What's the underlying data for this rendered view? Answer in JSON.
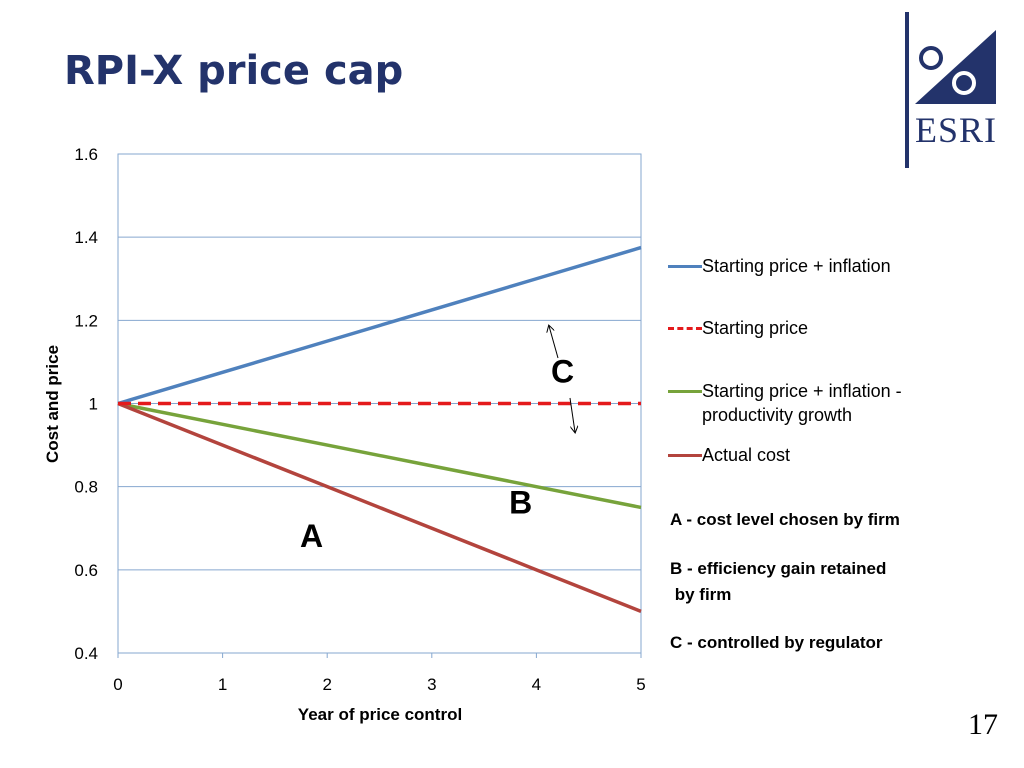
{
  "slide": {
    "title": "RPI-X price cap",
    "page_number": "17",
    "logo_text": "ESRI"
  },
  "notes": [
    "A - cost level chosen by firm",
    "B - efficiency gain retained\n by firm",
    "C - controlled by regulator"
  ],
  "chart_data": {
    "type": "line",
    "title": "",
    "xlabel": "Year of price control",
    "ylabel": "Cost and price",
    "x": [
      0,
      1,
      2,
      3,
      4,
      5
    ],
    "xlim": [
      0,
      5
    ],
    "ylim": [
      0.4,
      1.6
    ],
    "x_ticks": [
      "0",
      "1",
      "2",
      "3",
      "4",
      "5"
    ],
    "y_ticks": [
      {
        "value": 0.4,
        "label": "0.4"
      },
      {
        "value": 0.6,
        "label": "0.6"
      },
      {
        "value": 0.8,
        "label": "0.8"
      },
      {
        "value": 1.0,
        "label": "1"
      },
      {
        "value": 1.2,
        "label": "1.2"
      },
      {
        "value": 1.4,
        "label": "1.4"
      },
      {
        "value": 1.6,
        "label": "1.6"
      }
    ],
    "grid": "horizontal",
    "legend_position": "right",
    "series": [
      {
        "name": "Starting price + inflation",
        "values": [
          1.0,
          1.075,
          1.15,
          1.225,
          1.3,
          1.375
        ],
        "color": "#4f81bd",
        "style": "solid"
      },
      {
        "name": "Starting price",
        "values": [
          1.0,
          1.0,
          1.0,
          1.0,
          1.0,
          1.0
        ],
        "color": "#e41a1c",
        "style": "dashed"
      },
      {
        "name": "Starting price + inflation - productivity growth",
        "values": [
          1.0,
          0.95,
          0.9,
          0.85,
          0.8,
          0.75
        ],
        "color": "#77a33b",
        "style": "solid"
      },
      {
        "name": "Actual cost",
        "values": [
          1.0,
          0.9,
          0.8,
          0.7,
          0.6,
          0.5
        ],
        "color": "#b3443d",
        "style": "solid"
      }
    ],
    "legend_labels": [
      "Starting price + inflation",
      "Starting price",
      "Starting price + inflation -\nproductivity growth",
      "Actual cost"
    ],
    "annotations": [
      {
        "text": "A",
        "x": 1.85,
        "y": 0.655
      },
      {
        "text": "B",
        "x": 3.85,
        "y": 0.735
      },
      {
        "text": "C",
        "x": 4.25,
        "y": 1.05
      }
    ]
  }
}
